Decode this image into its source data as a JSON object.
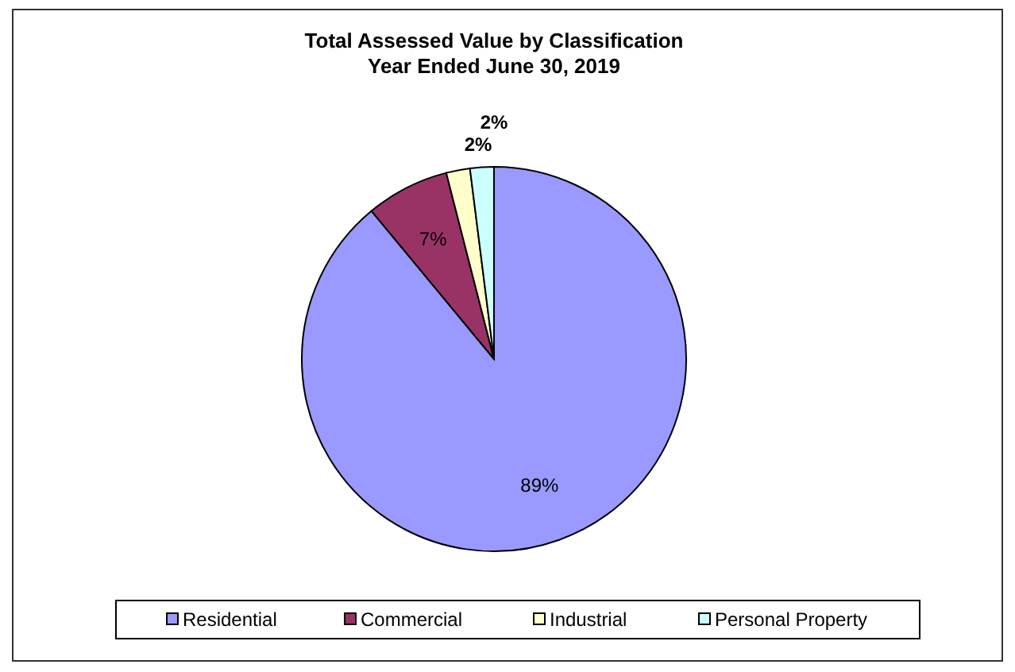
{
  "chart_data": {
    "type": "pie",
    "title": "Total Assessed Value by Classification\nYear Ended June 30, 2019",
    "categories": [
      "Residential",
      "Commercial",
      "Industrial",
      "Personal Property"
    ],
    "values": [
      89,
      7,
      2,
      2
    ],
    "colors": [
      "#9999ff",
      "#993366",
      "#ffffcc",
      "#ccffff"
    ],
    "value_labels": [
      "89%",
      "7%",
      "2%",
      "2%"
    ],
    "legend": "bottom"
  }
}
